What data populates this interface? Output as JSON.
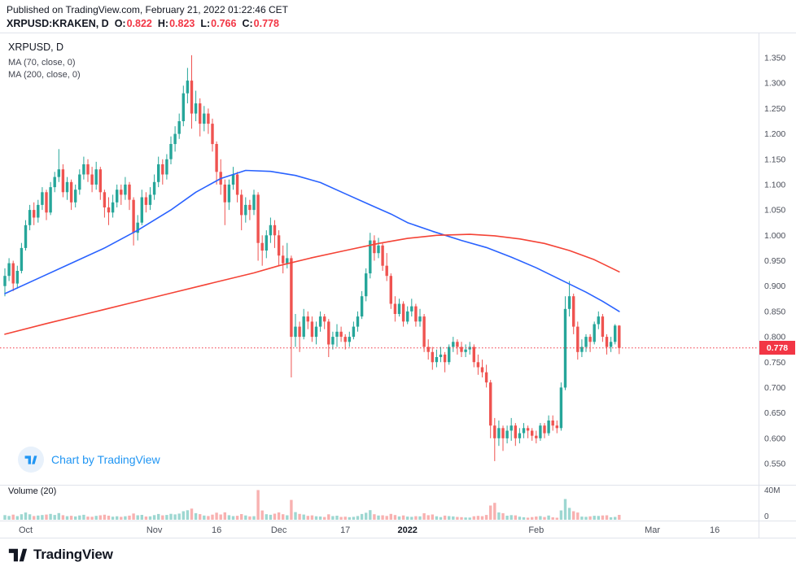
{
  "header": {
    "published_line": "Published on TradingView.com, February 21, 2022 01:22:46 CET",
    "symbol_line": {
      "symbol": "XRPUSD:KRAKEN, D",
      "ohlc": [
        {
          "label": "O:",
          "value": "0.822"
        },
        {
          "label": "H:",
          "value": "0.823"
        },
        {
          "label": "L:",
          "value": "0.766"
        },
        {
          "label": "C:",
          "value": "0.778"
        }
      ]
    }
  },
  "legend": {
    "title": "XRPUSD, D",
    "ma1": "MA (70, close, 0)",
    "ma2": "MA (200, close, 0)"
  },
  "watermark": {
    "text": "Chart by TradingView",
    "icon": "tradingview-logo"
  },
  "volume_pane": {
    "label": "Volume (20)"
  },
  "footer": {
    "brand": "TradingView"
  },
  "colors": {
    "up": "#26a69a",
    "down": "#ef5350",
    "vol_up": "rgba(38,166,154,0.45)",
    "vol_down": "rgba(239,83,80,0.45)",
    "ma_fast": "#2962ff",
    "ma_slow": "#f44336",
    "last_price_line": "#f23645",
    "badge_bg": "#f23645",
    "axis_text": "#4a4e59",
    "grid": "#e0e3eb",
    "watermark_blue": "#2196f3",
    "text_dark": "#131722"
  },
  "chart_data": {
    "type": "candlestick",
    "title": "XRPUSD:KRAKEN, D",
    "symbol": "XRPUSD",
    "exchange": "KRAKEN",
    "interval": "daily",
    "start_date": "2021-09-26",
    "end_date": "2022-02-21",
    "last_price": 0.778,
    "last_price_label": "0.778",
    "ohlc_last": {
      "open": 0.822,
      "high": 0.823,
      "low": 0.766,
      "close": 0.778
    },
    "price_axis": {
      "min": 0.55,
      "max": 1.35,
      "step": 0.05,
      "ticks": [
        "1.350",
        "1.300",
        "1.250",
        "1.200",
        "1.150",
        "1.100",
        "1.050",
        "1.000",
        "0.950",
        "0.900",
        "0.850",
        "0.800",
        "0.750",
        "0.700",
        "0.650",
        "0.600",
        "0.550"
      ]
    },
    "volume_axis": {
      "max": 40,
      "unit": "M",
      "labels": [
        "40M",
        "0"
      ]
    },
    "axis_total_days": 180,
    "time_ticks": [
      {
        "label": "Oct",
        "day": 5,
        "bold": false
      },
      {
        "label": "Nov",
        "day": 36,
        "bold": false
      },
      {
        "label": "16",
        "day": 51,
        "bold": false
      },
      {
        "label": "Dec",
        "day": 66,
        "bold": false
      },
      {
        "label": "17",
        "day": 82,
        "bold": false
      },
      {
        "label": "2022",
        "day": 97,
        "bold": true
      },
      {
        "label": "Feb",
        "day": 128,
        "bold": false
      },
      {
        "label": "Mar",
        "day": 156,
        "bold": false
      },
      {
        "label": "16",
        "day": 171,
        "bold": false
      }
    ],
    "moving_averages": [
      {
        "name": "MA 70",
        "length": 70,
        "color": "#2962ff",
        "points": [
          [
            0,
            0.885
          ],
          [
            8,
            0.915
          ],
          [
            16,
            0.945
          ],
          [
            24,
            0.975
          ],
          [
            32,
            1.01
          ],
          [
            40,
            1.05
          ],
          [
            46,
            1.085
          ],
          [
            52,
            1.112
          ],
          [
            58,
            1.128
          ],
          [
            64,
            1.126
          ],
          [
            70,
            1.118
          ],
          [
            76,
            1.104
          ],
          [
            82,
            1.082
          ],
          [
            88,
            1.06
          ],
          [
            93,
            1.042
          ],
          [
            97,
            1.025
          ],
          [
            103,
            1.008
          ],
          [
            110,
            0.99
          ],
          [
            116,
            0.976
          ],
          [
            122,
            0.957
          ],
          [
            128,
            0.936
          ],
          [
            134,
            0.912
          ],
          [
            140,
            0.888
          ],
          [
            144,
            0.87
          ],
          [
            148,
            0.85
          ]
        ]
      },
      {
        "name": "MA 200",
        "length": 200,
        "color": "#f44336",
        "points": [
          [
            0,
            0.805
          ],
          [
            10,
            0.826
          ],
          [
            20,
            0.846
          ],
          [
            30,
            0.866
          ],
          [
            40,
            0.886
          ],
          [
            50,
            0.906
          ],
          [
            60,
            0.926
          ],
          [
            66,
            0.94
          ],
          [
            74,
            0.956
          ],
          [
            82,
            0.97
          ],
          [
            90,
            0.984
          ],
          [
            97,
            0.994
          ],
          [
            104,
            1.0
          ],
          [
            112,
            1.002
          ],
          [
            118,
            0.999
          ],
          [
            124,
            0.993
          ],
          [
            130,
            0.984
          ],
          [
            136,
            0.97
          ],
          [
            142,
            0.952
          ],
          [
            148,
            0.928
          ]
        ]
      }
    ],
    "candles": [
      [
        0.9,
        0.935,
        0.88,
        0.92,
        6.2
      ],
      [
        0.92,
        0.955,
        0.91,
        0.945,
        5.1
      ],
      [
        0.945,
        0.95,
        0.89,
        0.905,
        6.8
      ],
      [
        0.905,
        0.94,
        0.895,
        0.93,
        4.9
      ],
      [
        0.93,
        0.985,
        0.925,
        0.975,
        7.4
      ],
      [
        0.975,
        1.03,
        0.97,
        1.02,
        9.6
      ],
      [
        1.02,
        1.06,
        1.01,
        1.05,
        7.2
      ],
      [
        1.05,
        1.065,
        1.02,
        1.035,
        5.0
      ],
      [
        1.035,
        1.07,
        1.025,
        1.06,
        5.6
      ],
      [
        1.06,
        1.095,
        1.05,
        1.085,
        6.3
      ],
      [
        1.085,
        1.09,
        1.03,
        1.045,
        6.9
      ],
      [
        1.045,
        1.105,
        1.04,
        1.095,
        7.8
      ],
      [
        1.095,
        1.125,
        1.085,
        1.115,
        6.4
      ],
      [
        1.115,
        1.17,
        1.105,
        1.13,
        8.9
      ],
      [
        1.13,
        1.14,
        1.075,
        1.085,
        6.1
      ],
      [
        1.085,
        1.115,
        1.07,
        1.105,
        4.8
      ],
      [
        1.105,
        1.11,
        1.05,
        1.065,
        5.3
      ],
      [
        1.065,
        1.1,
        1.055,
        1.09,
        4.4
      ],
      [
        1.09,
        1.13,
        1.08,
        1.12,
        5.7
      ],
      [
        1.12,
        1.155,
        1.11,
        1.14,
        6.6
      ],
      [
        1.14,
        1.15,
        1.105,
        1.12,
        4.2
      ],
      [
        1.12,
        1.135,
        1.085,
        1.1,
        4.0
      ],
      [
        1.1,
        1.145,
        1.09,
        1.13,
        5.2
      ],
      [
        1.13,
        1.135,
        1.07,
        1.085,
        5.9
      ],
      [
        1.085,
        1.09,
        1.035,
        1.055,
        6.7
      ],
      [
        1.055,
        1.075,
        1.02,
        1.045,
        5.4
      ],
      [
        1.045,
        1.08,
        1.035,
        1.065,
        4.1
      ],
      [
        1.065,
        1.1,
        1.055,
        1.09,
        4.6
      ],
      [
        1.09,
        1.1,
        1.06,
        1.08,
        3.9
      ],
      [
        1.08,
        1.115,
        1.07,
        1.1,
        4.7
      ],
      [
        1.1,
        1.105,
        1.05,
        1.07,
        5.5
      ],
      [
        1.07,
        1.075,
        0.98,
        1.005,
        8.3
      ],
      [
        1.005,
        1.04,
        0.99,
        1.025,
        6.0
      ],
      [
        1.025,
        1.09,
        1.02,
        1.075,
        6.5
      ],
      [
        1.075,
        1.085,
        1.045,
        1.06,
        4.3
      ],
      [
        1.06,
        1.095,
        1.05,
        1.08,
        4.5
      ],
      [
        1.08,
        1.12,
        1.07,
        1.105,
        6.2
      ],
      [
        1.105,
        1.155,
        1.095,
        1.14,
        7.7
      ],
      [
        1.14,
        1.15,
        1.1,
        1.12,
        5.8
      ],
      [
        1.12,
        1.16,
        1.11,
        1.15,
        6.4
      ],
      [
        1.15,
        1.195,
        1.14,
        1.18,
        7.9
      ],
      [
        1.18,
        1.215,
        1.165,
        1.2,
        7.1
      ],
      [
        1.2,
        1.24,
        1.19,
        1.225,
        8.2
      ],
      [
        1.225,
        1.295,
        1.215,
        1.28,
        11.4
      ],
      [
        1.28,
        1.33,
        1.26,
        1.305,
        12.6
      ],
      [
        1.305,
        1.355,
        1.21,
        1.24,
        14.8
      ],
      [
        1.24,
        1.285,
        1.225,
        1.26,
        8.8
      ],
      [
        1.26,
        1.27,
        1.195,
        1.22,
        7.5
      ],
      [
        1.22,
        1.255,
        1.205,
        1.24,
        5.6
      ],
      [
        1.24,
        1.25,
        1.2,
        1.22,
        5.0
      ],
      [
        1.22,
        1.23,
        1.165,
        1.18,
        6.8
      ],
      [
        1.18,
        1.185,
        1.1,
        1.125,
        9.4
      ],
      [
        1.125,
        1.15,
        1.08,
        1.1,
        7.0
      ],
      [
        1.1,
        1.11,
        1.02,
        1.065,
        9.8
      ],
      [
        1.065,
        1.11,
        1.05,
        1.1,
        6.1
      ],
      [
        1.1,
        1.135,
        1.09,
        1.12,
        4.9
      ],
      [
        1.12,
        1.125,
        1.065,
        1.08,
        5.3
      ],
      [
        1.08,
        1.09,
        1.01,
        1.04,
        7.6
      ],
      [
        1.04,
        1.075,
        1.025,
        1.06,
        5.7
      ],
      [
        1.06,
        1.07,
        1.03,
        1.05,
        4.4
      ],
      [
        1.05,
        1.09,
        1.04,
        1.08,
        4.8
      ],
      [
        1.08,
        1.085,
        0.95,
        0.985,
        39.5
      ],
      [
        0.985,
        1.0,
        0.94,
        0.97,
        12.3
      ],
      [
        0.97,
        1.01,
        0.955,
        1.0,
        7.4
      ],
      [
        1.0,
        1.035,
        0.985,
        1.02,
        6.6
      ],
      [
        1.02,
        1.03,
        0.975,
        1.0,
        8.1
      ],
      [
        1.0,
        1.01,
        0.94,
        0.96,
        9.7
      ],
      [
        0.96,
        0.98,
        0.925,
        0.945,
        7.3
      ],
      [
        0.945,
        0.985,
        0.935,
        0.955,
        6.0
      ],
      [
        0.955,
        0.96,
        0.72,
        0.8,
        26.4
      ],
      [
        0.8,
        0.845,
        0.78,
        0.82,
        10.2
      ],
      [
        0.82,
        0.83,
        0.77,
        0.8,
        7.8
      ],
      [
        0.8,
        0.855,
        0.795,
        0.84,
        6.9
      ],
      [
        0.84,
        0.85,
        0.815,
        0.83,
        5.2
      ],
      [
        0.83,
        0.84,
        0.79,
        0.8,
        5.8
      ],
      [
        0.8,
        0.83,
        0.785,
        0.82,
        4.6
      ],
      [
        0.82,
        0.85,
        0.81,
        0.84,
        4.3
      ],
      [
        0.84,
        0.845,
        0.815,
        0.83,
        3.7
      ],
      [
        0.83,
        0.835,
        0.76,
        0.785,
        7.2
      ],
      [
        0.785,
        0.81,
        0.775,
        0.8,
        4.9
      ],
      [
        0.8,
        0.825,
        0.78,
        0.81,
        5.4
      ],
      [
        0.81,
        0.82,
        0.79,
        0.8,
        3.8
      ],
      [
        0.8,
        0.805,
        0.775,
        0.79,
        4.1
      ],
      [
        0.79,
        0.81,
        0.78,
        0.8,
        3.5
      ],
      [
        0.8,
        0.83,
        0.795,
        0.82,
        3.9
      ],
      [
        0.82,
        0.85,
        0.81,
        0.84,
        5.0
      ],
      [
        0.84,
        0.89,
        0.835,
        0.88,
        7.7
      ],
      [
        0.88,
        0.935,
        0.87,
        0.925,
        9.3
      ],
      [
        0.925,
        1.005,
        0.915,
        0.99,
        12.8
      ],
      [
        0.99,
        1.0,
        0.95,
        0.965,
        7.4
      ],
      [
        0.965,
        0.995,
        0.955,
        0.98,
        5.6
      ],
      [
        0.98,
        0.985,
        0.93,
        0.94,
        5.9
      ],
      [
        0.94,
        0.965,
        0.91,
        0.92,
        5.1
      ],
      [
        0.92,
        0.925,
        0.855,
        0.865,
        7.8
      ],
      [
        0.865,
        0.88,
        0.83,
        0.845,
        6.3
      ],
      [
        0.845,
        0.875,
        0.84,
        0.865,
        4.4
      ],
      [
        0.865,
        0.87,
        0.82,
        0.83,
        5.7
      ],
      [
        0.83,
        0.86,
        0.825,
        0.85,
        4.2
      ],
      [
        0.85,
        0.875,
        0.84,
        0.86,
        3.9
      ],
      [
        0.86,
        0.865,
        0.82,
        0.83,
        4.8
      ],
      [
        0.83,
        0.855,
        0.82,
        0.84,
        4.5
      ],
      [
        0.84,
        0.845,
        0.77,
        0.78,
        8.6
      ],
      [
        0.78,
        0.795,
        0.755,
        0.77,
        6.1
      ],
      [
        0.77,
        0.78,
        0.735,
        0.75,
        7.0
      ],
      [
        0.75,
        0.775,
        0.74,
        0.76,
        4.7
      ],
      [
        0.76,
        0.78,
        0.75,
        0.765,
        3.6
      ],
      [
        0.765,
        0.77,
        0.73,
        0.75,
        5.5
      ],
      [
        0.75,
        0.785,
        0.745,
        0.78,
        4.9
      ],
      [
        0.78,
        0.8,
        0.77,
        0.79,
        4.4
      ],
      [
        0.79,
        0.795,
        0.765,
        0.78,
        3.8
      ],
      [
        0.78,
        0.79,
        0.76,
        0.77,
        3.5
      ],
      [
        0.77,
        0.785,
        0.76,
        0.775,
        3.0
      ],
      [
        0.775,
        0.79,
        0.765,
        0.78,
        2.9
      ],
      [
        0.78,
        0.785,
        0.74,
        0.75,
        4.6
      ],
      [
        0.75,
        0.765,
        0.725,
        0.74,
        5.2
      ],
      [
        0.74,
        0.755,
        0.72,
        0.73,
        4.8
      ],
      [
        0.73,
        0.745,
        0.7,
        0.71,
        6.4
      ],
      [
        0.71,
        0.715,
        0.6,
        0.625,
        18.9
      ],
      [
        0.625,
        0.64,
        0.555,
        0.6,
        22.5
      ],
      [
        0.6,
        0.635,
        0.585,
        0.62,
        9.7
      ],
      [
        0.62,
        0.625,
        0.575,
        0.6,
        8.8
      ],
      [
        0.6,
        0.625,
        0.59,
        0.615,
        5.4
      ],
      [
        0.615,
        0.64,
        0.595,
        0.625,
        6.2
      ],
      [
        0.625,
        0.63,
        0.585,
        0.6,
        5.8
      ],
      [
        0.6,
        0.62,
        0.59,
        0.61,
        4.1
      ],
      [
        0.61,
        0.63,
        0.6,
        0.62,
        3.4
      ],
      [
        0.62,
        0.625,
        0.6,
        0.615,
        2.8
      ],
      [
        0.615,
        0.62,
        0.595,
        0.605,
        3.6
      ],
      [
        0.605,
        0.615,
        0.59,
        0.6,
        4.3
      ],
      [
        0.6,
        0.63,
        0.595,
        0.625,
        4.9
      ],
      [
        0.625,
        0.63,
        0.6,
        0.61,
        3.7
      ],
      [
        0.61,
        0.645,
        0.605,
        0.635,
        5.6
      ],
      [
        0.635,
        0.645,
        0.615,
        0.625,
        3.2
      ],
      [
        0.625,
        0.635,
        0.61,
        0.62,
        2.7
      ],
      [
        0.62,
        0.71,
        0.615,
        0.7,
        12.4
      ],
      [
        0.7,
        0.88,
        0.695,
        0.855,
        27.6
      ],
      [
        0.855,
        0.91,
        0.84,
        0.88,
        15.8
      ],
      [
        0.88,
        0.885,
        0.805,
        0.82,
        11.3
      ],
      [
        0.82,
        0.83,
        0.755,
        0.77,
        9.6
      ],
      [
        0.77,
        0.795,
        0.76,
        0.78,
        4.2
      ],
      [
        0.78,
        0.805,
        0.77,
        0.8,
        3.9
      ],
      [
        0.8,
        0.805,
        0.77,
        0.79,
        4.5
      ],
      [
        0.79,
        0.83,
        0.785,
        0.825,
        5.3
      ],
      [
        0.825,
        0.85,
        0.815,
        0.84,
        5.1
      ],
      [
        0.84,
        0.845,
        0.79,
        0.8,
        5.7
      ],
      [
        0.8,
        0.805,
        0.765,
        0.78,
        6.0
      ],
      [
        0.78,
        0.8,
        0.77,
        0.79,
        3.3
      ],
      [
        0.79,
        0.825,
        0.785,
        0.822,
        3.8
      ],
      [
        0.822,
        0.823,
        0.766,
        0.778,
        6.5
      ]
    ]
  }
}
